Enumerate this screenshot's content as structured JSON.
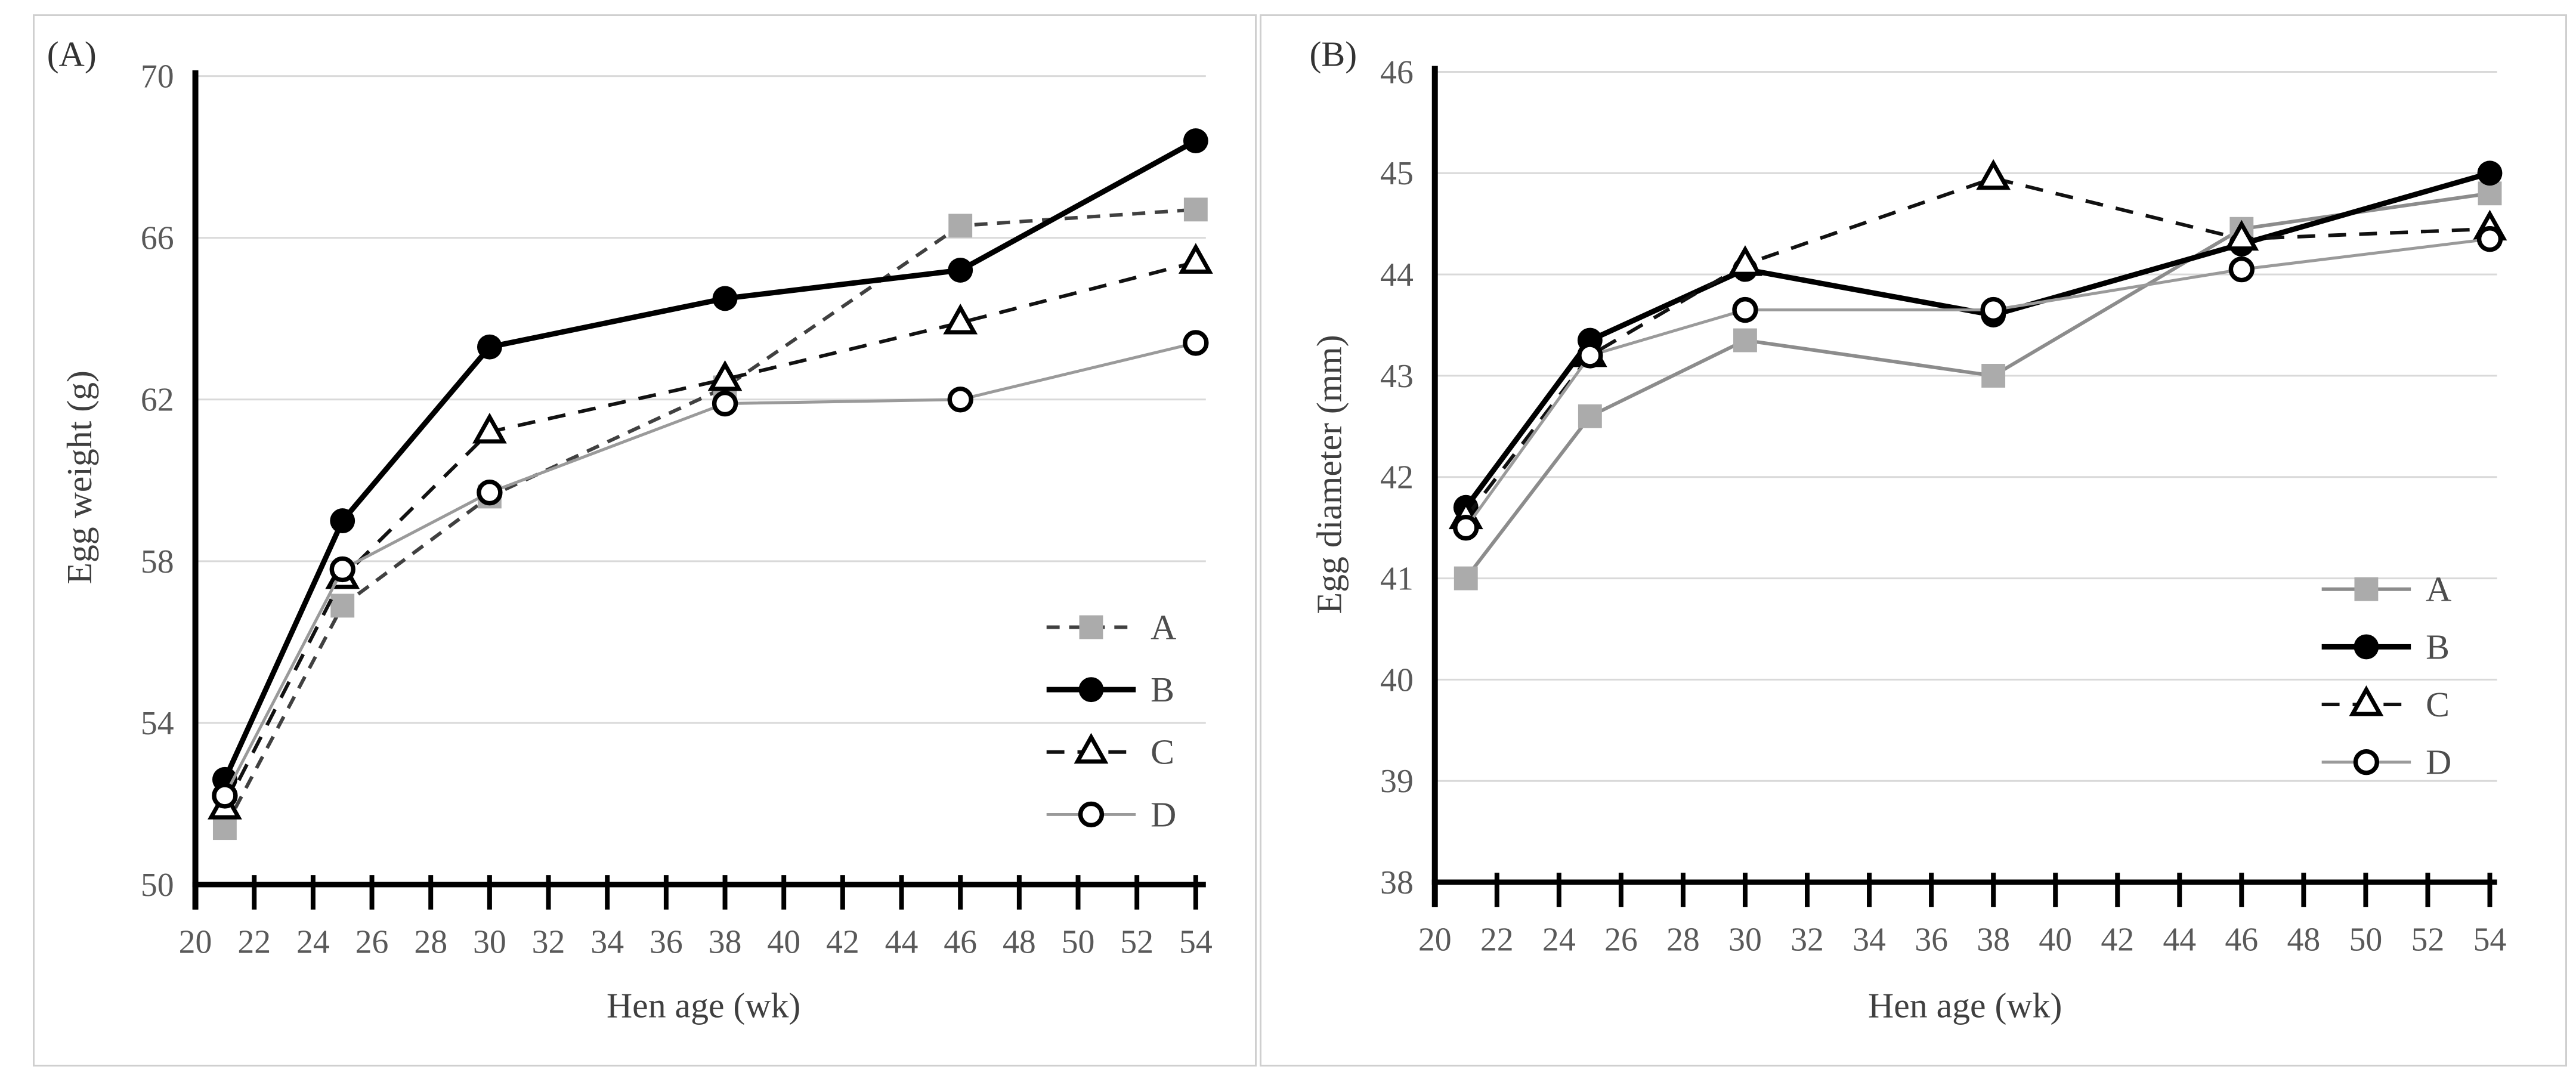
{
  "figure": {
    "background": "#ffffff",
    "frame_color": "#cfcfcf",
    "gridline_color": "#d9d9d9",
    "axis_color": "#000000",
    "tick_label_color": "#595959",
    "axis_title_color": "#3f3f3f",
    "legend_text_color": "#4d4d4d"
  },
  "chart_data": [
    {
      "type": "line",
      "panel_label": "(A)",
      "xlabel": "Hen age (wk)",
      "ylabel": "Egg weight (g)",
      "x": [
        21,
        25,
        30,
        38,
        46,
        54
      ],
      "xlim": [
        20,
        54
      ],
      "xticks": [
        20,
        22,
        24,
        26,
        28,
        30,
        32,
        34,
        36,
        38,
        40,
        42,
        44,
        46,
        48,
        50,
        52,
        54
      ],
      "ylim": [
        50,
        70
      ],
      "yticks": [
        50,
        54,
        58,
        62,
        66,
        70
      ],
      "grid": true,
      "legend_position": "inside-right",
      "legend_entries": [
        "A",
        "B",
        "C",
        "D"
      ],
      "series": [
        {
          "name": "A",
          "values": [
            51.4,
            56.9,
            59.6,
            62.3,
            66.3,
            66.7
          ],
          "line": "dashed",
          "dash": "22 16",
          "line_width": 6,
          "line_color": "#404040",
          "marker": "square",
          "marker_fill": "#ababab",
          "marker_stroke": "none"
        },
        {
          "name": "B",
          "values": [
            52.6,
            59.0,
            63.3,
            64.5,
            65.2,
            68.4
          ],
          "line": "solid",
          "dash": "",
          "line_width": 9,
          "line_color": "#000000",
          "marker": "circle-filled",
          "marker_fill": "#000000",
          "marker_stroke": "none"
        },
        {
          "name": "C",
          "values": [
            51.9,
            57.6,
            61.2,
            62.5,
            63.9,
            65.4
          ],
          "line": "dashed",
          "dash": "30 22",
          "line_width": 6,
          "line_color": "#111111",
          "marker": "triangle-open",
          "marker_fill": "#ffffff",
          "marker_stroke": "#000000"
        },
        {
          "name": "D",
          "values": [
            52.2,
            57.8,
            59.7,
            61.9,
            62.0,
            63.4
          ],
          "line": "solid",
          "dash": "",
          "line_width": 5,
          "line_color": "#9a9a9a",
          "marker": "circle-open",
          "marker_fill": "#ffffff",
          "marker_stroke": "#000000"
        }
      ]
    },
    {
      "type": "line",
      "panel_label": "(B)",
      "xlabel": "Hen age (wk)",
      "ylabel": "Egg diameter (mm)",
      "x": [
        21,
        25,
        30,
        38,
        46,
        54
      ],
      "xlim": [
        20,
        54
      ],
      "xticks": [
        20,
        22,
        24,
        26,
        28,
        30,
        32,
        34,
        36,
        38,
        40,
        42,
        44,
        46,
        48,
        50,
        52,
        54
      ],
      "ylim": [
        38,
        46
      ],
      "yticks": [
        38,
        39,
        40,
        41,
        42,
        43,
        44,
        45,
        46
      ],
      "grid": true,
      "legend_position": "inside-right",
      "legend_entries": [
        "A",
        "B",
        "C",
        "D"
      ],
      "series": [
        {
          "name": "A",
          "values": [
            41.0,
            42.6,
            43.35,
            43.0,
            44.45,
            44.8
          ],
          "line": "solid",
          "dash": "",
          "line_width": 6,
          "line_color": "#8c8c8c",
          "marker": "square",
          "marker_fill": "#ababab",
          "marker_stroke": "none"
        },
        {
          "name": "B",
          "values": [
            41.7,
            43.35,
            44.05,
            43.6,
            44.3,
            45.0
          ],
          "line": "solid",
          "dash": "",
          "line_width": 9,
          "line_color": "#000000",
          "marker": "circle-filled",
          "marker_fill": "#000000",
          "marker_stroke": "none"
        },
        {
          "name": "C",
          "values": [
            41.6,
            43.2,
            44.1,
            44.95,
            44.35,
            44.45
          ],
          "line": "dashed",
          "dash": "30 22",
          "line_width": 6,
          "line_color": "#111111",
          "marker": "triangle-open",
          "marker_fill": "#ffffff",
          "marker_stroke": "#000000"
        },
        {
          "name": "D",
          "values": [
            41.5,
            43.2,
            43.65,
            43.65,
            44.05,
            44.35
          ],
          "line": "solid",
          "dash": "",
          "line_width": 5,
          "line_color": "#9a9a9a",
          "marker": "circle-open",
          "marker_fill": "#ffffff",
          "marker_stroke": "#000000"
        }
      ]
    }
  ]
}
